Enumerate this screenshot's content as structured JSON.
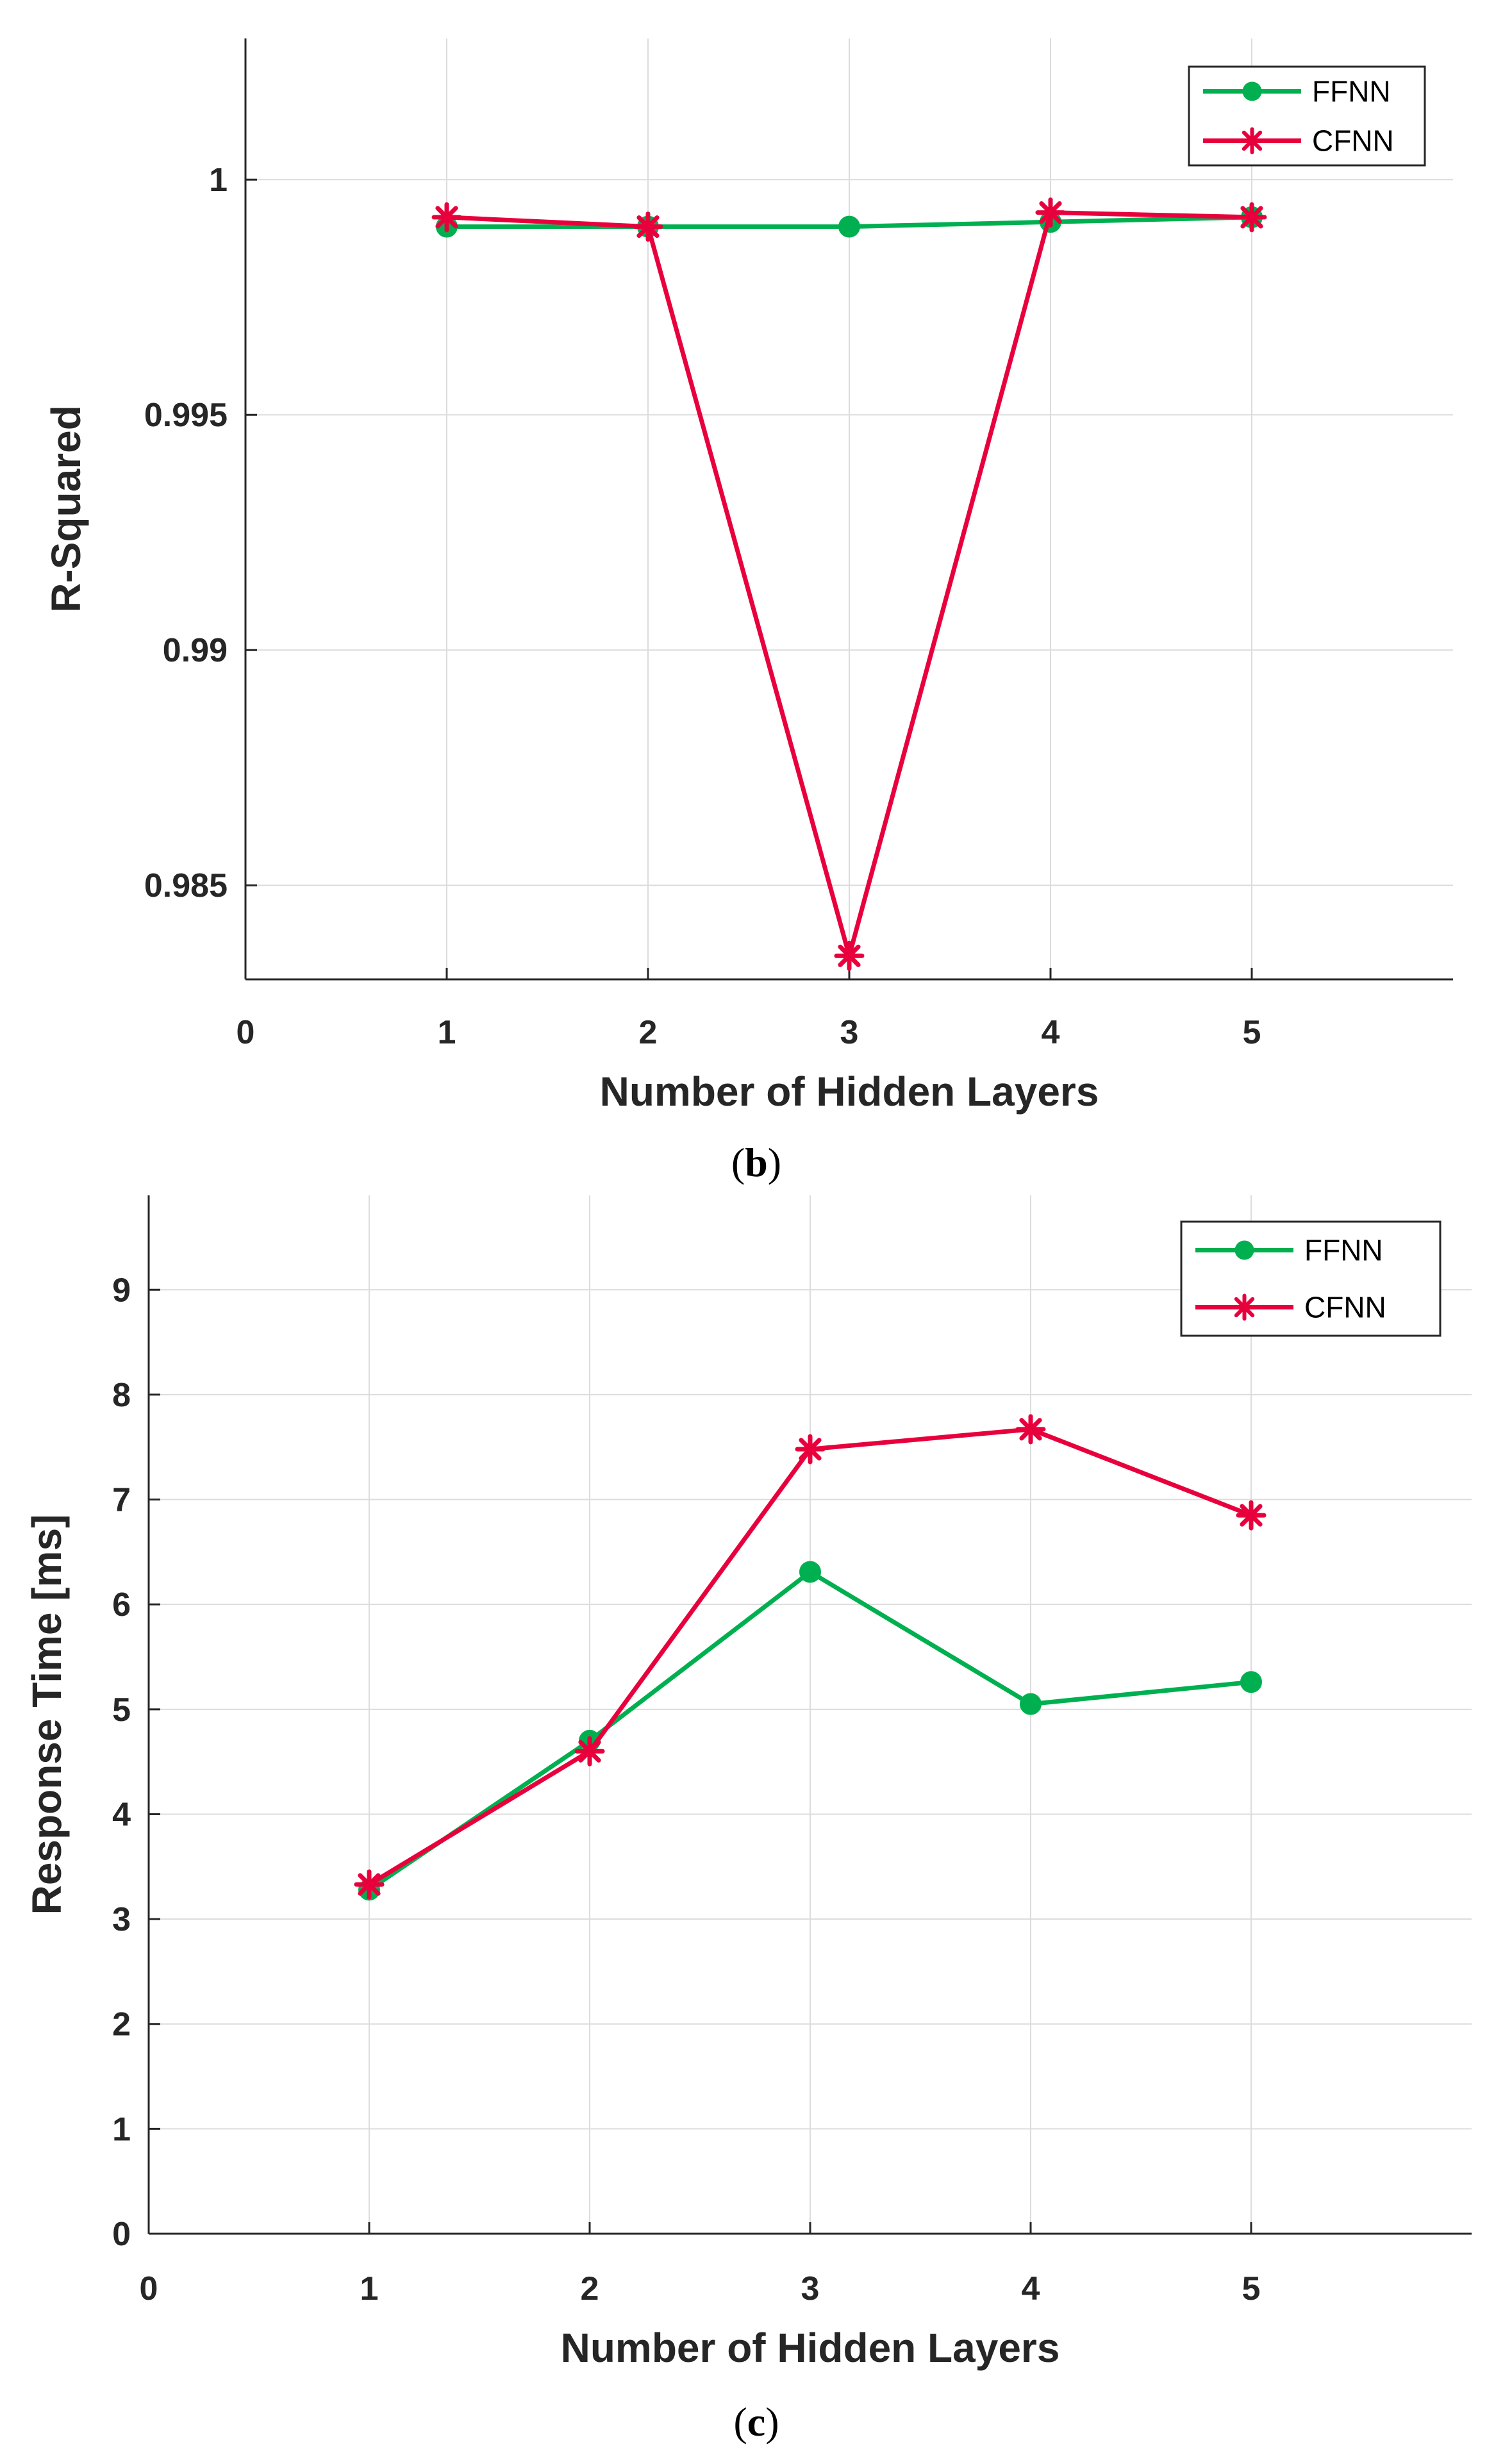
{
  "colors": {
    "ffnn": "#00b050",
    "cfnn": "#e8003d",
    "grid": "#dcdcdc",
    "axis": "#262626"
  },
  "chart_data": [
    {
      "type": "line",
      "panel": "b",
      "caption": {
        "open": "(",
        "letter": "b",
        "close": ")"
      },
      "xlabel": "Number of Hidden Layers",
      "ylabel": "R-Squared",
      "xlim": [
        0,
        6
      ],
      "ylim": [
        0.983,
        1.003
      ],
      "xticks": [
        0,
        1,
        2,
        3,
        4,
        5
      ],
      "xtick_labels": [
        "0",
        "1",
        "2",
        "3",
        "4",
        "5"
      ],
      "yticks": [
        0.985,
        0.99,
        0.995,
        1
      ],
      "ytick_labels": [
        "0.985",
        "0.99",
        "0.995",
        "1"
      ],
      "grid": true,
      "legend": "top-right",
      "x": [
        1,
        2,
        3,
        4,
        5
      ],
      "series": [
        {
          "name": "FFNN",
          "marker": "circle",
          "values": [
            0.999,
            0.999,
            0.999,
            0.9991,
            0.9992
          ]
        },
        {
          "name": "CFNN",
          "marker": "asterisk",
          "values": [
            0.9992,
            0.999,
            0.9835,
            0.9993,
            0.9992
          ]
        }
      ]
    },
    {
      "type": "line",
      "panel": "c",
      "caption": {
        "open": "(",
        "letter": "c",
        "close": ")"
      },
      "xlabel": "Number of Hidden Layers",
      "ylabel": "Response Time [ms]",
      "xlim": [
        0,
        6
      ],
      "ylim": [
        0,
        9.9
      ],
      "xticks": [
        0,
        1,
        2,
        3,
        4,
        5
      ],
      "xtick_labels": [
        "0",
        "1",
        "2",
        "3",
        "4",
        "5"
      ],
      "yticks": [
        0,
        1,
        2,
        3,
        4,
        5,
        6,
        7,
        8,
        9
      ],
      "ytick_labels": [
        "0",
        "1",
        "2",
        "3",
        "4",
        "5",
        "6",
        "7",
        "8",
        "9"
      ],
      "grid": true,
      "legend": "top-right",
      "x": [
        1,
        2,
        3,
        4,
        5
      ],
      "series": [
        {
          "name": "FFNN",
          "marker": "circle",
          "values": [
            3.28,
            4.7,
            6.31,
            5.05,
            5.26
          ]
        },
        {
          "name": "CFNN",
          "marker": "asterisk",
          "values": [
            3.33,
            4.6,
            7.48,
            7.67,
            6.85
          ]
        }
      ]
    }
  ]
}
